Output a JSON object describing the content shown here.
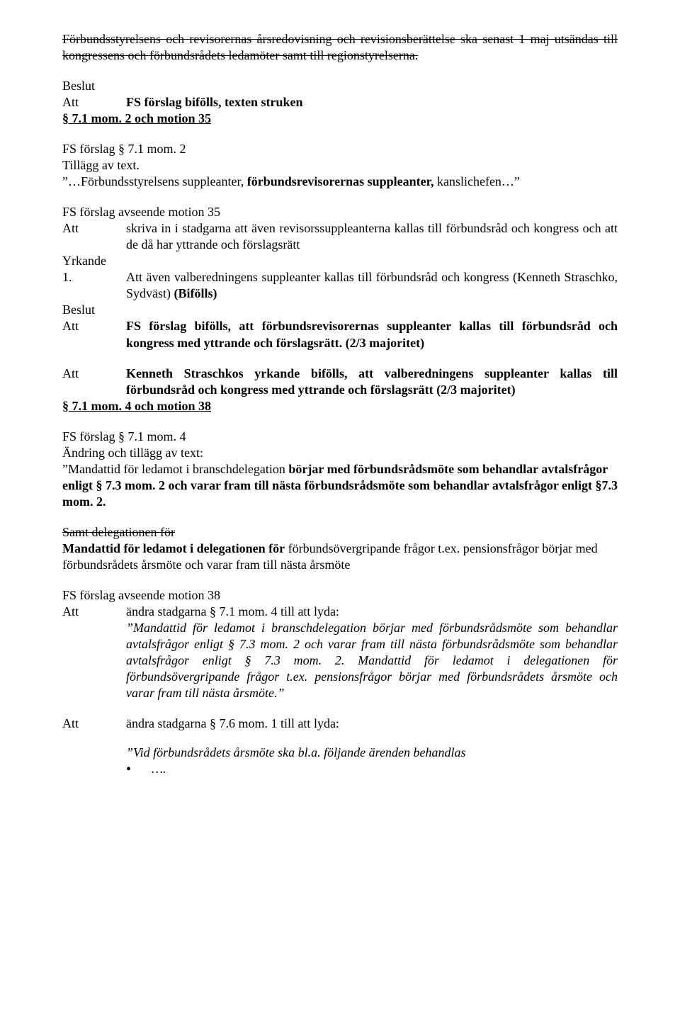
{
  "p1": "Förbundsstyrelsens och revisorernas årsredovisning och revisionsberättelse ska senast 1 maj utsändas till kongressens och förbundsrådets ledamöter samt till regionstyrelserna.",
  "beslut1": {
    "heading": "Beslut",
    "att": "Att",
    "text": "FS förslag bifölls, texten struken"
  },
  "s71m2": {
    "heading": "§ 7.1 mom. 2 och motion 35",
    "line1": "FS förslag § 7.1 mom. 2",
    "line2": "Tillägg av text.",
    "line3a": "”…Förbundsstyrelsens suppleanter, ",
    "line3b": "förbundsrevisorernas suppleanter,",
    "line3c": " kanslichefen…”"
  },
  "fs35": {
    "line1": "FS förslag avseende motion 35",
    "att": "Att",
    "text": "skriva in i stadgarna att även revisorssuppleanterna kallas till förbundsråd och kongress och att de då har yttrande och förslagsrätt"
  },
  "yrkande": {
    "heading": "Yrkande",
    "num": "1.",
    "text": "Att även valberedningens suppleanter kallas till förbundsråd och kongress (Kenneth Straschko, Sydväst) ",
    "bifolls": "(Bifölls)"
  },
  "beslut2": {
    "heading": "Beslut",
    "att1": "Att",
    "text1": "FS förslag bifölls, att förbundsrevisorernas suppleanter kallas till förbundsråd och kongress med yttrande och förslagsrätt. (2/3 majoritet)",
    "att2": "Att",
    "text2": "Kenneth Straschkos yrkande bifölls, att valberedningens suppleanter kallas till förbundsråd och kongress med yttrande och förslagsrätt (2/3 majoritet)"
  },
  "s71m4": {
    "heading": "§ 7.1 mom. 4 och motion 38",
    "line1": "FS förslag § 7.1 mom. 4",
    "line2": "Ändring och tillägg av text:",
    "quote_a": "”Mandattid för ledamot i branschdelegation ",
    "quote_b": "börjar med förbundsrådsmöte som behandlar avtalsfrågor enligt § 7.3 mom. 2 och varar fram till nästa förbundsrådsmöte som behandlar avtalsfrågor enligt §7.3 mom. 2.",
    "strike": "Samt delegationen för",
    "line3a": "Mandattid för ledamot i delegationen för",
    "line3b": " förbundsövergripande frågor t.ex. pensionsfrågor börjar med förbundsrådets årsmöte och varar fram till nästa årsmöte"
  },
  "fs38": {
    "line1": "FS förslag avseende motion 38",
    "att1": "Att",
    "att1text": "ändra stadgarna § 7.1 mom. 4 till att lyda:",
    "italic": "”Mandattid för ledamot i branschdelegation börjar med förbundsrådsmöte som behandlar avtalsfrågor enligt § 7.3 mom. 2 och varar fram till nästa förbundsrådsmöte som behandlar avtalsfrågor enligt § 7.3 mom. 2. Mandattid för ledamot i delegationen för förbundsövergripande frågor t.ex. pensionsfrågor börjar med förbundsrådets årsmöte och varar fram till nästa årsmöte.”",
    "att2": "Att",
    "att2text": "ändra stadgarna § 7.6 mom. 1 till att lyda:",
    "italic2": "”Vid förbundsrådets årsmöte ska bl.a. följande ärenden behandlas",
    "bullet_ellipsis": "…."
  }
}
